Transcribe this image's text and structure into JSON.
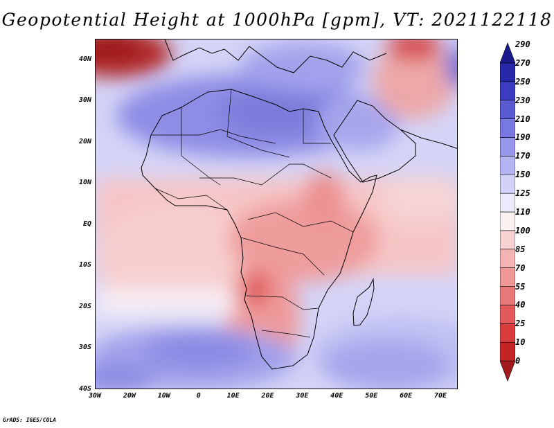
{
  "title": "Geopotential Height at 1000hPa [gpm], VT: 2021122118",
  "credit": "GrADS: IGES/COLA",
  "map": {
    "lon_range": [
      -30,
      75
    ],
    "lat_range": [
      -40,
      45
    ],
    "lat_ticks": [
      {
        "value": 40,
        "label": "40N"
      },
      {
        "value": 30,
        "label": "30N"
      },
      {
        "value": 20,
        "label": "20N"
      },
      {
        "value": 10,
        "label": "10N"
      },
      {
        "value": 0,
        "label": "EQ"
      },
      {
        "value": -10,
        "label": "10S"
      },
      {
        "value": -20,
        "label": "20S"
      },
      {
        "value": -30,
        "label": "30S"
      },
      {
        "value": -40,
        "label": "40S"
      }
    ],
    "lon_ticks": [
      {
        "value": -30,
        "label": "30W"
      },
      {
        "value": -20,
        "label": "20W"
      },
      {
        "value": -10,
        "label": "10W"
      },
      {
        "value": 0,
        "label": "0"
      },
      {
        "value": 10,
        "label": "10E"
      },
      {
        "value": 20,
        "label": "20E"
      },
      {
        "value": 30,
        "label": "30E"
      },
      {
        "value": 40,
        "label": "40E"
      },
      {
        "value": 50,
        "label": "50E"
      },
      {
        "value": 60,
        "label": "60E"
      },
      {
        "value": 70,
        "label": "70E"
      }
    ]
  },
  "colorbar": {
    "levels": [
      "0",
      "10",
      "25",
      "40",
      "55",
      "70",
      "85",
      "100",
      "110",
      "125",
      "150",
      "170",
      "190",
      "210",
      "230",
      "250",
      "270",
      "290"
    ],
    "colors": [
      "#a31a1a",
      "#c42424",
      "#d93c3c",
      "#e25a5a",
      "#e97878",
      "#ef9696",
      "#f4b4b4",
      "#f8d2d2",
      "#fdf2f2",
      "#ececfc",
      "#d2d2f8",
      "#b4b4f2",
      "#9696ea",
      "#7878e0",
      "#5a5ad2",
      "#3c3cc2",
      "#2828aa",
      "#1a1a8c"
    ]
  },
  "chart_data": {
    "type": "heatmap",
    "title": "Geopotential Height at 1000hPa [gpm], VT: 2021122118",
    "x_axis": {
      "range": [
        -30,
        75
      ],
      "ticks": [
        "30W",
        "20W",
        "10W",
        "0",
        "10E",
        "20E",
        "30E",
        "40E",
        "50E",
        "60E",
        "70E"
      ]
    },
    "y_axis": {
      "range": [
        -40,
        45
      ],
      "ticks": [
        "40S",
        "30S",
        "20S",
        "10S",
        "EQ",
        "10N",
        "20N",
        "30N",
        "40N"
      ]
    },
    "color_scale_levels": [
      0,
      10,
      25,
      40,
      55,
      70,
      85,
      100,
      110,
      125,
      150,
      170,
      190,
      210,
      230,
      250,
      270,
      290
    ],
    "features": [
      {
        "lon": -25,
        "lat": 42,
        "value": 5
      },
      {
        "lon": 60,
        "lat": 42,
        "value": 20
      },
      {
        "lon": 15,
        "lat": 30,
        "value": 210
      },
      {
        "lon": 25,
        "lat": 22,
        "value": 195
      },
      {
        "lon": 15,
        "lat": -17,
        "value": 30
      },
      {
        "lon": 22,
        "lat": -5,
        "value": 70
      },
      {
        "lon": 60,
        "lat": -30,
        "value": 200
      },
      {
        "lon": -15,
        "lat": -32,
        "value": 205
      },
      {
        "lon": 5,
        "lat": -38,
        "value": 195
      }
    ]
  }
}
